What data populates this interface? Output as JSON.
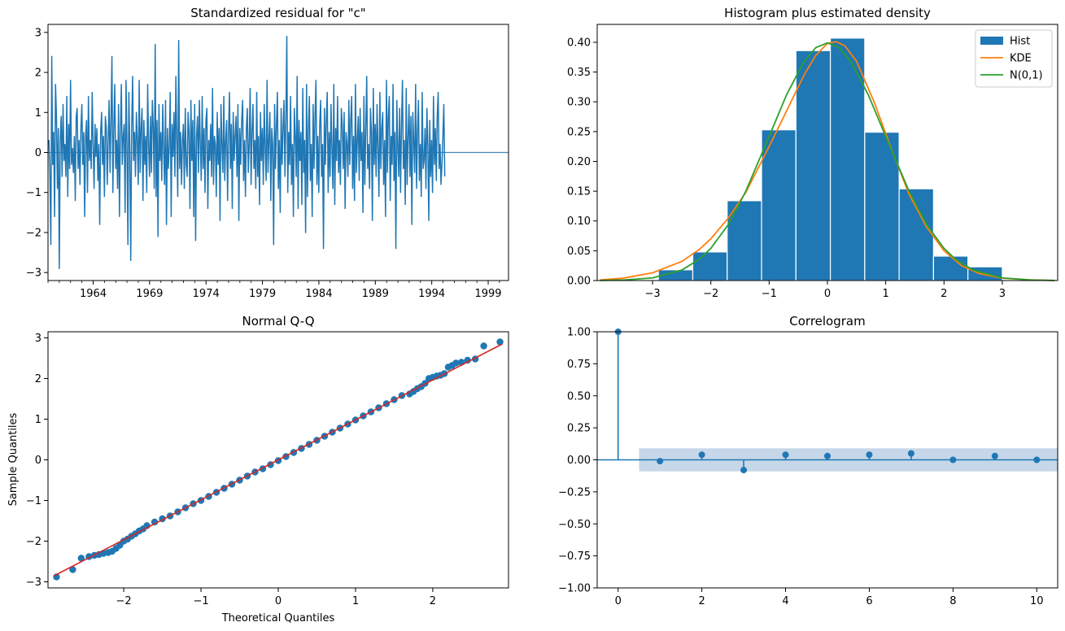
{
  "figure": {
    "background": "#ffffff",
    "colors": {
      "blue": "#1f77b4",
      "orange": "#ff7f0e",
      "green": "#2ca02c",
      "red": "#d62728",
      "band": "#c3d5e8"
    }
  },
  "chart_data": [
    {
      "type": "line",
      "title": "Standardized residual for \"c\"",
      "xlabel": "",
      "ylabel": "",
      "xlim": [
        1960.0,
        2000.8
      ],
      "ylim": [
        -3.2,
        3.2
      ],
      "x_ticks": [
        1964,
        1969,
        1974,
        1979,
        1984,
        1989,
        1994,
        1999
      ],
      "x_tick_labels": [
        "1964",
        "1969",
        "1974",
        "1979",
        "1984",
        "1989",
        "1994",
        "1999"
      ],
      "y_ticks": [
        -3,
        -2,
        -1,
        0,
        1,
        2,
        3
      ],
      "y_tick_labels": [
        "−3",
        "−2",
        "−1",
        "0",
        "1",
        "2",
        "3"
      ],
      "hline_y": 0,
      "series": [
        {
          "x_start": 1960.0,
          "x_step_years": 0.0833,
          "values": [
            0.2,
            0.3,
            -0.5,
            -2.3,
            2.4,
            -0.3,
            0.5,
            -1.6,
            1.7,
            0.9,
            -0.9,
            0.6,
            -2.9,
            0.3,
            0.9,
            -0.6,
            1.2,
            -0.2,
            0.2,
            -0.6,
            1.4,
            -1.1,
            0.7,
            -0.4,
            1.8,
            -0.3,
            0.1,
            -0.5,
            0.4,
            -1.2,
            0.9,
            1.1,
            -0.4,
            0.3,
            -0.8,
            0.6,
            1.2,
            -0.3,
            0.5,
            -1.6,
            0.4,
            0.8,
            -1.0,
            1.4,
            -0.2,
            0.3,
            -0.4,
            1.5,
            0.2,
            -0.9,
            0.7,
            -0.1,
            0.6,
            -0.7,
            0.2,
            -1.8,
            0.5,
            1.0,
            -0.3,
            0.4,
            -1.1,
            0.9,
            0.6,
            -0.8,
            0.3,
            1.3,
            -0.5,
            0.8,
            2.4,
            -1.0,
            0.6,
            1.7,
            -0.4,
            0.3,
            -0.9,
            1.2,
            -1.6,
            0.5,
            1.7,
            -0.3,
            0.4,
            0.7,
            -1.5,
            1.8,
            0.2,
            -2.3,
            1.5,
            0.1,
            -2.7,
            0.6,
            1.9,
            -0.2,
            0.5,
            -0.6,
            1.0,
            0.3,
            -0.8,
            1.8,
            -0.5,
            0.6,
            1.1,
            -1.2,
            0.8,
            -0.3,
            0.4,
            -1.0,
            1.7,
            0.2,
            -0.6,
            0.9,
            -0.5,
            1.3,
            0.6,
            -0.9,
            2.7,
            -1.1,
            0.8,
            -2.1,
            1.2,
            -0.2,
            0.5,
            -0.7,
            1.2,
            0.1,
            -0.8,
            1.3,
            -1.8,
            0.6,
            -0.4,
            0.2,
            1.5,
            -1.6,
            0.7,
            -0.1,
            1.0,
            -0.6,
            1.9,
            0.3,
            -1.1,
            2.8,
            -0.4,
            0.5,
            -0.8,
            0.3,
            0.7,
            -0.9,
            1.1,
            -0.3,
            -0.6,
            1.0,
            0.5,
            -1.4,
            1.3,
            -0.2,
            0.8,
            -1.6,
            1.2,
            -2.2,
            0.4,
            0.9,
            -0.5,
            1.3,
            0.2,
            -0.7,
            1.4,
            -0.4,
            0.6,
            -1.0,
            0.8,
            1.1,
            -1.4,
            0.3,
            -0.2,
            0.7,
            -0.6,
            1.6,
            -0.8,
            0.4,
            0.2,
            -1.1,
            1.0,
            -0.3,
            0.6,
            -1.7,
            1.2,
            0.2,
            -0.5,
            1.4,
            -0.7,
            0.3,
            0.8,
            -1.2,
            0.5,
            1.5,
            -0.4,
            0.7,
            -1.4,
            1.0,
            -0.2,
            0.4,
            0.9,
            -0.6,
            1.2,
            -1.7,
            0.6,
            -0.3,
            0.8,
            1.3,
            -0.7,
            0.3,
            -1.1,
            0.6,
            1.1,
            -0.5,
            0.2,
            1.6,
            -0.8,
            0.5,
            1.2,
            -0.4,
            0.3,
            -0.9,
            1.5,
            -0.6,
            0.4,
            -1.3,
            1.0,
            -0.2,
            0.6,
            -0.8,
            1.2,
            0.1,
            -0.7,
            1.8,
            -0.5,
            0.3,
            1.0,
            -1.2,
            0.6,
            0.2,
            -2.3,
            1.2,
            -0.4,
            0.7,
            1.5,
            -0.9,
            0.3,
            -1.5,
            1.1,
            -0.3,
            0.6,
            1.3,
            -0.6,
            0.8,
            2.9,
            -1.0,
            0.5,
            -0.3,
            1.4,
            -0.8,
            0.2,
            -1.6,
            1.1,
            0.4,
            -0.6,
            1.9,
            -1.4,
            0.8,
            -0.2,
            0.5,
            -1.3,
            1.6,
            -0.5,
            0.3,
            -2.0,
            1.7,
            -1.1,
            0.6,
            1.4,
            -0.7,
            0.2,
            -1.6,
            1.2,
            -0.4,
            0.9,
            1.8,
            -0.8,
            0.4,
            -1.0,
            0.7,
            1.3,
            -0.6,
            0.2,
            -2.4,
            1.1,
            -0.3,
            0.8,
            1.5,
            -1.0,
            0.5,
            -0.6,
            1.2,
            0.1,
            -0.9,
            1.7,
            -1.3,
            0.6,
            -0.2,
            1.4,
            -0.5,
            0.3,
            -0.8,
            1.1,
            0.7,
            -0.4,
            1.0,
            -1.4,
            0.5,
            0.2,
            -0.6,
            1.3,
            -0.3,
            0.8,
            1.4,
            -0.9,
            0.4,
            -1.2,
            1.7,
            -0.5,
            0.3,
            0.9,
            -0.7,
            1.1,
            -0.2,
            0.5,
            -1.5,
            1.4,
            -0.8,
            0.6,
            1.9,
            -0.4,
            0.2,
            -0.9,
            1.1,
            0.5,
            -1.7,
            1.6,
            -0.3,
            0.7,
            -0.6,
            1.2,
            0.1,
            -1.1,
            1.5,
            -0.4,
            0.6,
            1.0,
            -0.8,
            0.3,
            -1.6,
            1.8,
            -0.5,
            0.9,
            1.4,
            -1.2,
            0.4,
            -0.3,
            1.7,
            -0.7,
            0.5,
            -2.4,
            1.3,
            0.2,
            -0.6,
            1.1,
            -1.0,
            0.7,
            1.8,
            -0.4,
            0.3,
            -1.3,
            1.6,
            -0.8,
            0.4,
            1.2,
            -0.6,
            0.9,
            -1.8,
            1.0,
            0.3,
            -0.5,
            1.7,
            -0.9,
            0.5,
            1.3,
            -0.7,
            0.2,
            -1.1,
            1.5,
            -0.4,
            -0.2,
            0.6,
            -0.9,
            1.1,
            0.2,
            -1.7,
            0.8,
            -0.6,
            0.3,
            -1.0,
            1.4,
            -0.3,
            0.6,
            -0.7,
            0.9,
            1.5,
            -0.4,
            0.2,
            -0.8,
            -0.3,
            0.4,
            1.2,
            -0.6
          ]
        }
      ]
    },
    {
      "type": "bar",
      "title": "Histogram plus estimated density",
      "xlabel": "",
      "ylabel": "",
      "xlim": [
        -3.95,
        3.95
      ],
      "ylim": [
        0,
        0.43
      ],
      "x_ticks": [
        -3,
        -2,
        -1,
        0,
        1,
        2,
        3
      ],
      "x_tick_labels": [
        "−3",
        "−2",
        "−1",
        "0",
        "1",
        "2",
        "3"
      ],
      "y_ticks": [
        0.0,
        0.05,
        0.1,
        0.15,
        0.2,
        0.25,
        0.3,
        0.35,
        0.4
      ],
      "y_tick_labels": [
        "0.00",
        "0.05",
        "0.10",
        "0.15",
        "0.20",
        "0.25",
        "0.30",
        "0.35",
        "0.40"
      ],
      "legend_position": "top-right",
      "bins": [
        {
          "x0": -2.9,
          "x1": -2.31,
          "value": 0.018
        },
        {
          "x0": -2.31,
          "x1": -1.72,
          "value": 0.048
        },
        {
          "x0": -1.72,
          "x1": -1.13,
          "value": 0.134
        },
        {
          "x0": -1.13,
          "x1": -0.54,
          "value": 0.253
        },
        {
          "x0": -0.54,
          "x1": 0.05,
          "value": 0.386
        },
        {
          "x0": 0.05,
          "x1": 0.64,
          "value": 0.407
        },
        {
          "x0": 0.64,
          "x1": 1.23,
          "value": 0.249
        },
        {
          "x0": 1.23,
          "x1": 1.82,
          "value": 0.154
        },
        {
          "x0": 1.82,
          "x1": 2.41,
          "value": 0.041
        },
        {
          "x0": 2.41,
          "x1": 3.0,
          "value": 0.023
        }
      ],
      "series": [
        {
          "name": "Hist",
          "kind": "bar",
          "color": "#1f77b4"
        },
        {
          "name": "KDE",
          "kind": "line",
          "color": "#ff7f0e",
          "x": [
            -3.9,
            -3.5,
            -3.0,
            -2.5,
            -2.2,
            -2.0,
            -1.7,
            -1.4,
            -1.0,
            -0.7,
            -0.4,
            -0.2,
            0.0,
            0.15,
            0.3,
            0.5,
            0.8,
            1.1,
            1.4,
            1.7,
            2.0,
            2.3,
            2.6,
            3.0,
            3.5,
            3.9
          ],
          "y": [
            0.001,
            0.004,
            0.013,
            0.032,
            0.052,
            0.07,
            0.105,
            0.148,
            0.225,
            0.285,
            0.345,
            0.378,
            0.398,
            0.401,
            0.394,
            0.368,
            0.3,
            0.22,
            0.145,
            0.09,
            0.05,
            0.025,
            0.012,
            0.004,
            0.001,
            0.0002
          ]
        },
        {
          "name": "N(0,1)",
          "kind": "line",
          "color": "#2ca02c",
          "x": [
            -3.9,
            -3.5,
            -3.0,
            -2.5,
            -2.2,
            -2.0,
            -1.7,
            -1.4,
            -1.0,
            -0.7,
            -0.4,
            -0.2,
            0.0,
            0.2,
            0.4,
            0.7,
            1.0,
            1.4,
            1.7,
            2.0,
            2.2,
            2.5,
            3.0,
            3.5,
            3.9
          ],
          "y": [
            0.0002,
            0.0009,
            0.0044,
            0.0175,
            0.0355,
            0.054,
            0.094,
            0.15,
            0.242,
            0.312,
            0.368,
            0.391,
            0.399,
            0.391,
            0.368,
            0.312,
            0.242,
            0.15,
            0.094,
            0.054,
            0.0355,
            0.0175,
            0.0044,
            0.0009,
            0.0002
          ]
        }
      ]
    },
    {
      "type": "scatter",
      "title": "Normal Q-Q",
      "xlabel": "Theoretical Quantiles",
      "ylabel": "Sample Quantiles",
      "xlim": [
        -2.98,
        2.98
      ],
      "ylim": [
        -3.15,
        3.15
      ],
      "x_ticks": [
        -2,
        -1,
        0,
        1,
        2
      ],
      "x_tick_labels": [
        "−2",
        "−1",
        "0",
        "1",
        "2"
      ],
      "y_ticks": [
        -3,
        -2,
        -1,
        0,
        1,
        2,
        3
      ],
      "y_tick_labels": [
        "−3",
        "−2",
        "−1",
        "0",
        "1",
        "2",
        "3"
      ],
      "reference_line": {
        "x": [
          -2.9,
          2.9
        ],
        "y": [
          -2.85,
          2.85
        ],
        "color": "#d62728"
      },
      "series": [
        {
          "color": "#1f77b4",
          "x": [
            -2.87,
            -2.66,
            -2.55,
            -2.45,
            -2.38,
            -2.32,
            -2.26,
            -2.2,
            -2.15,
            -2.1,
            -2.05,
            -2.0,
            -1.95,
            -1.9,
            -1.85,
            -1.8,
            -1.75,
            -1.7,
            -1.6,
            -1.5,
            -1.4,
            -1.3,
            -1.2,
            -1.1,
            -1.0,
            -0.9,
            -0.8,
            -0.7,
            -0.6,
            -0.5,
            -0.4,
            -0.3,
            -0.2,
            -0.1,
            0.0,
            0.1,
            0.2,
            0.3,
            0.4,
            0.5,
            0.6,
            0.7,
            0.8,
            0.9,
            1.0,
            1.1,
            1.2,
            1.3,
            1.4,
            1.5,
            1.6,
            1.7,
            1.75,
            1.8,
            1.85,
            1.9,
            1.95,
            2.0,
            2.05,
            2.1,
            2.15,
            2.2,
            2.25,
            2.3,
            2.37,
            2.45,
            2.55,
            2.66,
            2.87
          ],
          "y": [
            -2.88,
            -2.7,
            -2.42,
            -2.38,
            -2.35,
            -2.33,
            -2.3,
            -2.28,
            -2.25,
            -2.18,
            -2.1,
            -2.0,
            -1.95,
            -1.88,
            -1.82,
            -1.75,
            -1.7,
            -1.62,
            -1.53,
            -1.45,
            -1.38,
            -1.28,
            -1.18,
            -1.08,
            -1.0,
            -0.9,
            -0.8,
            -0.7,
            -0.6,
            -0.5,
            -0.4,
            -0.3,
            -0.22,
            -0.12,
            -0.02,
            0.08,
            0.18,
            0.28,
            0.38,
            0.48,
            0.58,
            0.68,
            0.78,
            0.88,
            0.98,
            1.08,
            1.18,
            1.28,
            1.38,
            1.48,
            1.58,
            1.62,
            1.68,
            1.75,
            1.8,
            1.88,
            2.0,
            2.03,
            2.06,
            2.08,
            2.12,
            2.28,
            2.32,
            2.38,
            2.4,
            2.45,
            2.48,
            2.8,
            2.9
          ]
        }
      ]
    },
    {
      "type": "scatter",
      "title": "Correlogram",
      "xlabel": "",
      "ylabel": "",
      "xlim": [
        -0.5,
        10.5
      ],
      "ylim": [
        -1.0,
        1.0
      ],
      "x_ticks": [
        0,
        2,
        4,
        6,
        8,
        10
      ],
      "x_tick_labels": [
        "0",
        "2",
        "4",
        "6",
        "8",
        "10"
      ],
      "y_ticks": [
        -1.0,
        -0.75,
        -0.5,
        -0.25,
        0.0,
        0.25,
        0.5,
        0.75,
        1.0
      ],
      "y_tick_labels": [
        "−1.00",
        "−0.75",
        "−0.50",
        "−0.25",
        "0.00",
        "0.25",
        "0.50",
        "0.75",
        "1.00"
      ],
      "confidence_band": {
        "x0": 0.5,
        "x1": 10.5,
        "y": 0.09
      },
      "series": [
        {
          "color": "#1f77b4",
          "lags": [
            0,
            1,
            2,
            3,
            4,
            5,
            6,
            7,
            8,
            9,
            10
          ],
          "values": [
            1.0,
            -0.01,
            0.04,
            -0.08,
            0.04,
            0.03,
            0.04,
            0.05,
            0.0,
            0.03,
            0.0
          ]
        }
      ]
    }
  ]
}
